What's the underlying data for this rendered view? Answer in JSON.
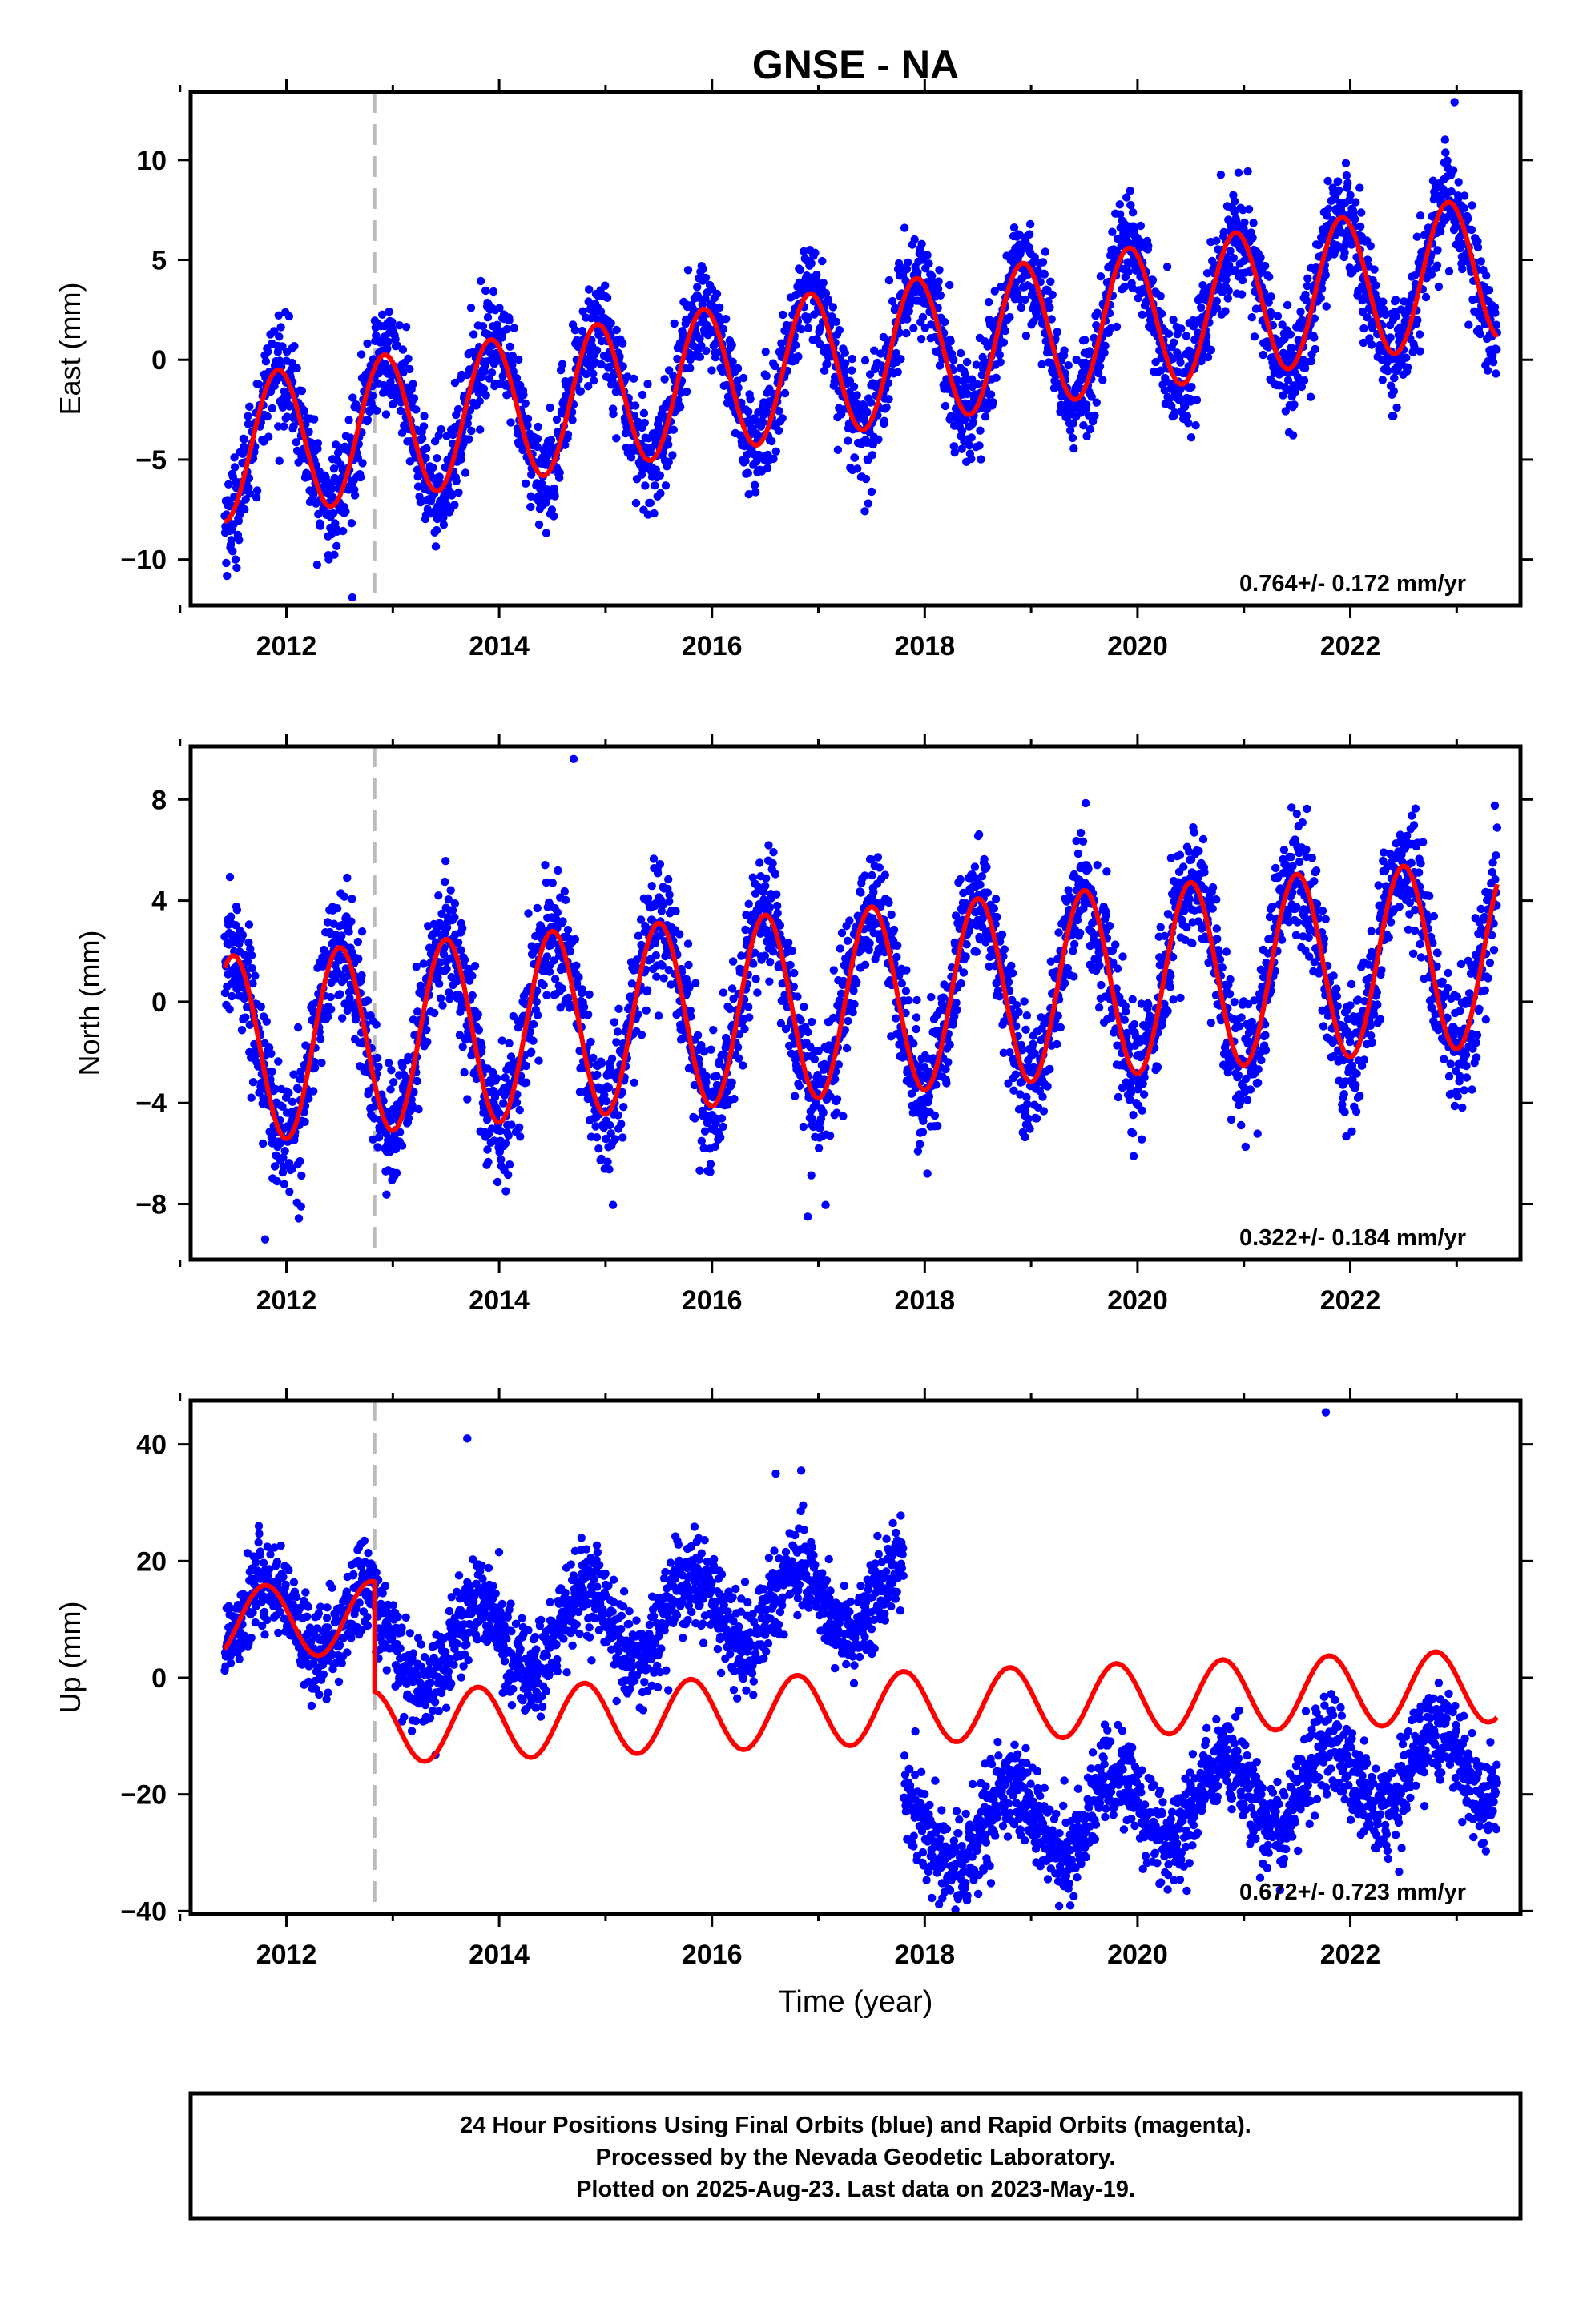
{
  "title": "GNSE - NA",
  "xlabel": "Time (year)",
  "footer": {
    "lines": [
      "24 Hour Positions Using Final Orbits (blue) and Rapid Orbits (magenta).",
      "Processed by the Nevada Geodetic Laboratory.",
      "Plotted on 2025-Aug-23. Last data on 2023-May-19."
    ]
  },
  "colors": {
    "data_points": "#0000ff",
    "model_fit": "#ff0000",
    "event_line": "#bbbbbb",
    "axes": "#000000"
  },
  "chart_data": [
    {
      "type": "scatter",
      "ylabel": "East (mm)",
      "xlim": [
        2011.1,
        2023.6
      ],
      "ylim": [
        -12.3,
        13.4
      ],
      "xticks": [
        2012,
        2014,
        2016,
        2018,
        2020,
        2022
      ],
      "xtick_labels": [
        "2012",
        "2014",
        "2016",
        "2018",
        "2020",
        "2022"
      ],
      "yticks": [
        -10,
        -5,
        0,
        5,
        10
      ],
      "ytick_labels": [
        "−10",
        "−5",
        "0",
        "5",
        "10"
      ],
      "rate_label": "0.764+/- 0.172 mm/yr",
      "event_line_x": 2012.83,
      "data_span": [
        2011.42,
        2023.38
      ],
      "model_fit": {
        "offset": -4.5,
        "rate": 0.764,
        "ref_year": 2011.42,
        "annual_amplitude": 3.6,
        "annual_phase_year": 2011.92,
        "step_at": 2012.83,
        "step_size": 0
      },
      "scatter_spread": 1.3,
      "highlighted_points": [
        {
          "x": 2012.62,
          "y": -11.9
        },
        {
          "x": 2022.98,
          "y": 12.9
        }
      ]
    },
    {
      "type": "scatter",
      "ylabel": "North (mm)",
      "xlim": [
        2011.1,
        2023.6
      ],
      "ylim": [
        -10.2,
        10.1
      ],
      "xticks": [
        2012,
        2014,
        2016,
        2018,
        2020,
        2022
      ],
      "xtick_labels": [
        "2012",
        "2014",
        "2016",
        "2018",
        "2020",
        "2022"
      ],
      "yticks": [
        -8,
        -4,
        0,
        4,
        8
      ],
      "ytick_labels": [
        "−8",
        "−4",
        "0",
        "4",
        "8"
      ],
      "rate_label": "0.322+/- 0.184 mm/yr",
      "event_line_x": 2012.83,
      "data_span": [
        2011.42,
        2023.38
      ],
      "model_fit": {
        "offset": -1.9,
        "rate": 0.322,
        "ref_year": 2011.42,
        "annual_amplitude": 3.7,
        "annual_phase_year": 2011.5,
        "step_at": 2012.83,
        "step_size": 0
      },
      "scatter_spread": 1.25,
      "highlighted_points": [
        {
          "x": 2014.7,
          "y": 9.6
        },
        {
          "x": 2011.8,
          "y": -9.4
        },
        {
          "x": 2016.9,
          "y": -8.5
        }
      ]
    },
    {
      "type": "scatter",
      "ylabel": "Up (mm)",
      "xlim": [
        2011.1,
        2023.6
      ],
      "ylim": [
        -40.5,
        47.5
      ],
      "xticks": [
        2012,
        2014,
        2016,
        2018,
        2020,
        2022
      ],
      "xtick_labels": [
        "2012",
        "2014",
        "2016",
        "2018",
        "2020",
        "2022"
      ],
      "yticks": [
        -40,
        -20,
        0,
        20,
        40
      ],
      "ytick_labels": [
        "−40",
        "−20",
        "0",
        "20",
        "40"
      ],
      "rate_label": "0.672+/- 0.723 mm/yr",
      "event_line_x": 2012.83,
      "data_span": [
        2011.42,
        2023.38
      ],
      "model_fit": {
        "offset": 9.4,
        "rate": 0.672,
        "ref_year": 2011.42,
        "annual_amplitude": 6.2,
        "annual_phase_year": 2011.8,
        "step_at": 2012.83,
        "step_size": -18.8
      },
      "data_segments": [
        {
          "from": 2011.42,
          "to": 2012.83,
          "offset": 10.2,
          "amplitude": 6.0
        },
        {
          "from": 2012.83,
          "to": 2017.8,
          "offset": 4.0,
          "rate": 2.2,
          "amplitude": 6.5
        },
        {
          "from": 2017.8,
          "to": 2023.38,
          "offset": -27.5,
          "rate": 2.4,
          "amplitude": 6.5
        }
      ],
      "scatter_spread": 4.0,
      "highlighted_points": [
        {
          "x": 2013.7,
          "y": 41.0
        },
        {
          "x": 2021.77,
          "y": 45.5
        },
        {
          "x": 2016.6,
          "y": 35.0
        }
      ]
    }
  ]
}
